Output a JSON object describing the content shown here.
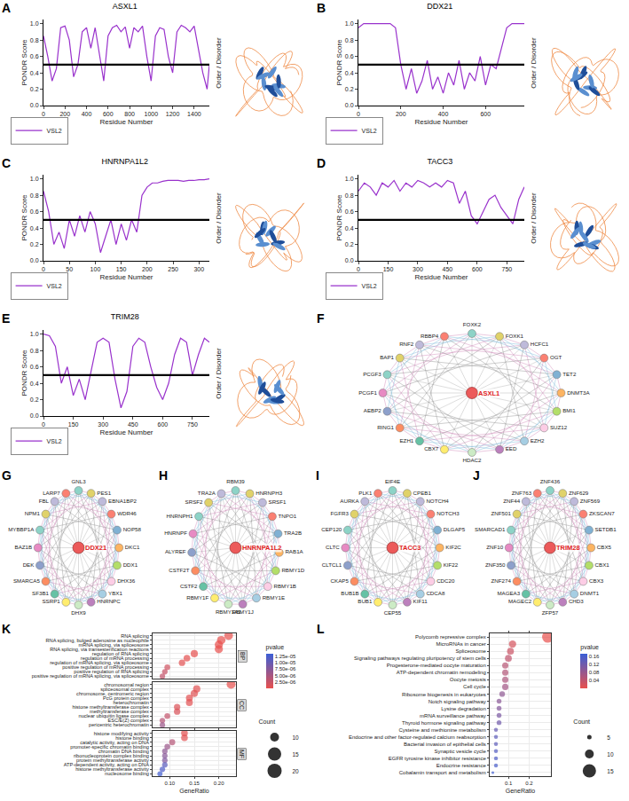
{
  "chart_data": [
    {
      "panel": "A",
      "type": "line",
      "title": "ASXL1",
      "x_label": "Residue Number",
      "y_label": "PONDR Score",
      "y2_label": "Order / Disorder",
      "series": [
        {
          "name": "VSL2",
          "color": "#9932cc",
          "x": [
            0,
            40,
            80,
            120,
            160,
            200,
            240,
            280,
            320,
            360,
            400,
            440,
            480,
            520,
            560,
            600,
            640,
            680,
            720,
            760,
            800,
            840,
            880,
            920,
            960,
            1000,
            1040,
            1080,
            1120,
            1160,
            1200,
            1240,
            1280,
            1320,
            1360,
            1400,
            1440,
            1480,
            1520,
            1541
          ],
          "values": [
            0.85,
            0.6,
            0.3,
            0.45,
            0.95,
            0.97,
            0.8,
            0.35,
            0.5,
            0.9,
            0.95,
            0.7,
            0.95,
            0.6,
            0.3,
            0.85,
            0.95,
            0.98,
            0.9,
            0.96,
            0.7,
            0.95,
            0.9,
            0.97,
            0.6,
            0.3,
            0.85,
            0.95,
            0.93,
            0.6,
            0.4,
            0.9,
            0.98,
            0.95,
            0.9,
            0.97,
            0.7,
            0.4,
            0.2,
            0.5
          ]
        }
      ],
      "threshold": 0.5,
      "xlim": [
        0,
        1541
      ],
      "xticks": [
        0,
        200,
        400,
        600,
        800,
        1000,
        1200,
        1400
      ],
      "ylim": [
        0,
        1.05
      ],
      "yticks": [
        {
          "value": 0,
          "label": "0.0"
        },
        0.2,
        0.4,
        0.6,
        0.8,
        {
          "value": 1,
          "label": "1.0"
        }
      ],
      "grid": false,
      "legend": "bottom left"
    },
    {
      "panel": "B",
      "type": "line",
      "title": "DDX21",
      "x_label": "Residue Number",
      "y_label": "PONDR Score",
      "y2_label": "Order / Disorder",
      "series": [
        {
          "name": "VSL2",
          "color": "#9932cc",
          "x": [
            0,
            25,
            50,
            75,
            100,
            125,
            150,
            175,
            200,
            225,
            250,
            275,
            300,
            325,
            350,
            375,
            400,
            425,
            450,
            475,
            500,
            525,
            550,
            575,
            600,
            625,
            650,
            675,
            700,
            725,
            750,
            783
          ],
          "values": [
            0.95,
            1.0,
            1.0,
            1.0,
            1.0,
            1.0,
            1.0,
            0.95,
            0.5,
            0.2,
            0.45,
            0.15,
            0.3,
            0.55,
            0.2,
            0.35,
            0.15,
            0.4,
            0.25,
            0.55,
            0.2,
            0.4,
            0.3,
            0.6,
            0.25,
            0.5,
            0.45,
            0.7,
            0.95,
            1.0,
            1.0,
            1.0
          ]
        }
      ],
      "threshold": 0.5,
      "xlim": [
        0,
        783
      ],
      "xticks": [
        0,
        200,
        400,
        600
      ],
      "ylim": [
        0,
        1.05
      ],
      "yticks": [
        {
          "value": 0,
          "label": "0.0"
        },
        0.2,
        0.4,
        0.6,
        0.8,
        {
          "value": 1,
          "label": "1.0"
        }
      ],
      "grid": false,
      "legend": "bottom left"
    },
    {
      "panel": "C",
      "type": "line",
      "title": "HNRNPA1L2",
      "x_label": "Residue Number",
      "y_label": "PONDR Score",
      "y2_label": "Order / Disorder",
      "series": [
        {
          "name": "VSL2",
          "color": "#9932cc",
          "x": [
            0,
            10,
            20,
            30,
            40,
            50,
            60,
            70,
            80,
            90,
            100,
            110,
            120,
            130,
            140,
            150,
            160,
            170,
            180,
            190,
            200,
            210,
            220,
            230,
            240,
            250,
            260,
            270,
            280,
            290,
            300,
            310,
            320
          ],
          "values": [
            0.85,
            0.6,
            0.2,
            0.35,
            0.15,
            0.5,
            0.3,
            0.55,
            0.35,
            0.6,
            0.45,
            0.1,
            0.3,
            0.5,
            0.2,
            0.45,
            0.25,
            0.5,
            0.35,
            0.8,
            0.9,
            0.95,
            0.95,
            0.97,
            0.98,
            0.98,
            0.98,
            0.97,
            0.98,
            0.98,
            0.99,
            0.99,
            1.0
          ]
        }
      ],
      "threshold": 0.5,
      "xlim": [
        0,
        320
      ],
      "xticks": [
        0,
        50,
        100,
        150,
        200,
        250,
        300
      ],
      "ylim": [
        0,
        1.05
      ],
      "yticks": [
        {
          "value": 0,
          "label": "0.0"
        },
        0.2,
        0.4,
        0.6,
        0.8,
        {
          "value": 1,
          "label": "1.0"
        }
      ],
      "grid": false,
      "legend": "bottom left"
    },
    {
      "panel": "D",
      "type": "line",
      "title": "TACC3",
      "x_label": "Residue Number",
      "y_label": "PONDR Score",
      "y2_label": "Order / Disorder",
      "series": [
        {
          "name": "VSL2",
          "color": "#9932cc",
          "x": [
            0,
            30,
            60,
            90,
            120,
            150,
            180,
            210,
            240,
            270,
            300,
            330,
            360,
            390,
            420,
            450,
            480,
            510,
            540,
            570,
            600,
            630,
            660,
            690,
            720,
            750,
            780,
            810,
            838
          ],
          "values": [
            0.85,
            0.95,
            0.9,
            0.8,
            0.95,
            0.9,
            0.98,
            0.85,
            0.95,
            0.9,
            0.98,
            0.95,
            0.9,
            0.95,
            0.9,
            0.98,
            0.95,
            0.7,
            0.85,
            0.55,
            0.45,
            0.6,
            0.75,
            0.8,
            0.65,
            0.55,
            0.45,
            0.75,
            0.9
          ]
        }
      ],
      "threshold": 0.5,
      "xlim": [
        0,
        838
      ],
      "xticks": [
        0,
        150,
        300,
        450,
        600,
        750
      ],
      "ylim": [
        0,
        1.05
      ],
      "yticks": [
        {
          "value": 0,
          "label": "0.0"
        },
        0.2,
        0.4,
        0.6,
        0.8,
        {
          "value": 1,
          "label": "1.0"
        }
      ],
      "grid": false,
      "legend": "bottom left"
    },
    {
      "panel": "E",
      "type": "line",
      "title": "TRIM28",
      "x_label": "Residue Number",
      "y_label": "PONDR Score",
      "y2_label": "Order / Disorder",
      "series": [
        {
          "name": "VSL2",
          "color": "#9932cc",
          "x": [
            0,
            30,
            60,
            90,
            120,
            150,
            180,
            210,
            240,
            270,
            300,
            330,
            360,
            390,
            420,
            450,
            480,
            510,
            540,
            570,
            600,
            630,
            660,
            690,
            720,
            750,
            780,
            810,
            835
          ],
          "values": [
            1.0,
            0.98,
            0.85,
            0.4,
            0.6,
            0.25,
            0.45,
            0.2,
            0.55,
            0.9,
            0.95,
            0.9,
            0.45,
            0.1,
            0.3,
            0.85,
            0.95,
            0.9,
            0.6,
            0.35,
            0.2,
            0.4,
            0.75,
            0.95,
            0.9,
            0.5,
            0.75,
            0.95,
            0.9
          ]
        }
      ],
      "threshold": 0.5,
      "xlim": [
        0,
        835
      ],
      "xticks": [
        0,
        150,
        300,
        450,
        600,
        750
      ],
      "ylim": [
        0,
        1.05
      ],
      "yticks": [
        {
          "value": 0,
          "label": "0.0"
        },
        0.2,
        0.4,
        0.6,
        0.8,
        {
          "value": 1,
          "label": "1.0"
        }
      ],
      "grid": false,
      "legend": "bottom left"
    },
    {
      "panel": "F",
      "type": "network",
      "hub": "ASXL1",
      "nodes": [
        "FOXK2",
        "FOXK1",
        "HCFC1",
        "OGT",
        "TET2",
        "DNMT3A",
        "BMI1",
        "SUZ12",
        "EZH2",
        "EED",
        "HDAC2",
        "CBX7",
        "EZH1",
        "RING1",
        "AEBP2",
        "PCGF1",
        "PCGF3",
        "BAP1",
        "RNF2",
        "RBBP4"
      ]
    },
    {
      "panel": "G",
      "type": "network",
      "hub": "DDX21",
      "nodes": [
        "GNL3",
        "PES1",
        "EBNA1BP2",
        "WDR46",
        "NOP58",
        "DKC1",
        "DDX1",
        "DHX36",
        "YBX1",
        "HNRNPC",
        "DHX9",
        "SSRP1",
        "SF3B1",
        "SMARCA5",
        "DEK",
        "BAZ1B",
        "MYBBP1A",
        "NPM1",
        "FBL",
        "LARP7"
      ]
    },
    {
      "panel": "H",
      "type": "network",
      "hub": "HNRNPA1L2",
      "nodes": [
        "RBM39",
        "HNRNPH3",
        "SRSF1",
        "TNPO1",
        "TRA2B",
        "RAB1A",
        "RBMY1D",
        "RBMY1B",
        "RBMY1E",
        "RBMY1J",
        "RBMY1A1",
        "RBMY1F",
        "CSTF2",
        "CSTF2T",
        "ALYREF",
        "HNRNPF",
        "HNRNPH1",
        "SRSF2",
        "TRA2A"
      ]
    },
    {
      "panel": "I",
      "type": "network",
      "hub": "TACC3",
      "nodes": [
        "EIF4E",
        "CPEB1",
        "NOTCH4",
        "NOTCH3",
        "DLGAP5",
        "KIF2C",
        "KIF22",
        "CDC20",
        "CDCA8",
        "KIF11",
        "CEP55",
        "BUB1",
        "BUB1B",
        "CKAP5",
        "CLTCL1",
        "CLTC",
        "CEP120",
        "FGFR3",
        "AURKA",
        "PLK1"
      ]
    },
    {
      "panel": "J",
      "type": "network",
      "hub": "TRIM28",
      "nodes": [
        "ZNF436",
        "ZNF629",
        "ZNF569",
        "ZKSCAN7",
        "SETDB1",
        "CBX5",
        "CBX1",
        "CBX3",
        "DNMT1",
        "CHD3",
        "ZFP57",
        "MAGEC2",
        "MAGEA3",
        "ZNF274",
        "ZNF350",
        "ZNF10",
        "SMARCAD1",
        "ZNF501",
        "ZNF44",
        "ZNF763"
      ]
    },
    {
      "panel": "K",
      "type": "dot",
      "x_label": "GeneRatio",
      "facets": [
        {
          "name": "BP",
          "terms": [
            "RNA splicing",
            "RNA splicing, bulged adenosine as nucleophile",
            "mRNA splicing, via spliceosome",
            "RNA splicing, via transesterification reactions",
            "regulation of RNA splicing",
            "regulation of mRNA processing",
            "regulation of mRNA splicing, via spliceosome",
            "positive regulation of mRNA processing",
            "positive regulation of RNA splicing",
            "positive regulation of mRNA splicing, via spliceosome"
          ],
          "values": [
            0.22,
            0.205,
            0.2,
            0.2,
            0.15,
            0.135,
            0.125,
            0.095,
            0.09,
            0.085
          ],
          "counts": [
            20,
            19,
            18,
            18,
            14,
            12,
            11,
            9,
            8,
            8
          ],
          "pvalues": [
            2e-09,
            5e-09,
            5e-09,
            5e-09,
            1e-07,
            3e-07,
            4e-07,
            2e-06,
            2.5e-06,
            3e-06
          ]
        },
        {
          "name": "CC",
          "terms": [
            "chromosomal region",
            "spliceosomal complex",
            "chromosome, centromeric region",
            "PcG protein complex",
            "heterochromatin",
            "histone methyltransferase complex",
            "methyltransferase complex",
            "nuclear ubiquitin ligase complex",
            "ESC/E(Z) complex",
            "pericentric heterochromatin"
          ],
          "values": [
            0.225,
            0.155,
            0.15,
            0.14,
            0.14,
            0.115,
            0.115,
            0.095,
            0.085,
            0.085
          ],
          "counts": [
            21,
            14,
            14,
            13,
            13,
            11,
            11,
            9,
            8,
            8
          ],
          "pvalues": [
            1e-08,
            5e-07,
            6e-07,
            4e-07,
            5e-07,
            1e-06,
            1.2e-06,
            3e-06,
            4e-06,
            6e-06
          ]
        },
        {
          "name": "MF",
          "terms": [
            "histone modifying activity",
            "histone binding",
            "catalytic activity, acting on DNA",
            "promoter-specific chromatin binding",
            "chromatin DNA binding",
            "ribonucleoprotein complex binding",
            "protein methyltransferase activity",
            "ATP-dependent activity, acting on DNA",
            "histone methyltransferase activity",
            "nucleosome binding"
          ],
          "values": [
            0.13,
            0.13,
            0.105,
            0.095,
            0.09,
            0.09,
            0.09,
            0.09,
            0.085,
            0.08
          ],
          "counts": [
            12,
            12,
            10,
            9,
            8,
            8,
            8,
            8,
            8,
            7
          ],
          "pvalues": [
            3e-07,
            5e-07,
            4e-06,
            6e-06,
            7e-06,
            7.5e-06,
            8e-06,
            1.1e-05,
            1.2e-05,
            1.3e-05
          ]
        }
      ],
      "xlim": [
        0.065,
        0.235
      ],
      "xticks": [
        {
          "value": 0.1,
          "label": "0.10"
        },
        0.15,
        {
          "value": 0.2,
          "label": "0.20"
        }
      ],
      "color_label": "pvalue",
      "color_range": [
        0,
        1.35e-05
      ],
      "color_ticks": [
        {
          "value": 2.5e-06,
          "label": "2.50e-06"
        },
        {
          "value": 5e-06,
          "label": "5.00e-06"
        },
        {
          "value": 7.5e-06,
          "label": "7.50e-06"
        },
        {
          "value": 1e-05,
          "label": "1.00e-05"
        },
        {
          "value": 1.25e-05,
          "label": "1.25e-05"
        }
      ],
      "size_label": "Count",
      "size_legend": [
        10,
        15,
        20
      ],
      "grid": true,
      "legend": "right"
    },
    {
      "panel": "L",
      "type": "dot",
      "x_label": "GeneRatio",
      "terms": [
        "Polycomb repressive complex",
        "MicroRNAs in cancer",
        "Spliceosome",
        "Signaling pathways regulating pluripotency of stem cells",
        "Progesterone-mediated oocyte maturation",
        "ATP-dependent chromatin remodeling",
        "Oocyte meiosis",
        "Cell cycle",
        "Ribosome biogenesis in eukaryotes",
        "Notch signaling pathway",
        "Lysine degradation",
        "mRNA surveillance pathway",
        "Thyroid hormone signaling pathway",
        "Cysteine and methionine metabolism",
        "Endocrine and other factor-regulated calcium reabsorption",
        "Bacterial invasion of epithelial cells",
        "Synaptic vesicle cycle",
        "EGFR tyrosine kinase inhibitor resistance",
        "Endocrine resistance",
        "Cobalamin transport and metabolism"
      ],
      "values": [
        0.29,
        0.12,
        0.11,
        0.1,
        0.085,
        0.085,
        0.085,
        0.085,
        0.07,
        0.055,
        0.055,
        0.055,
        0.055,
        0.04,
        0.04,
        0.04,
        0.04,
        0.04,
        0.04,
        0.025
      ],
      "counts": [
        17,
        7,
        6,
        6,
        5,
        5,
        5,
        5,
        4,
        3,
        3,
        3,
        3,
        2,
        2,
        2,
        2,
        2,
        2,
        1
      ],
      "pvalues": [
        0.0002,
        0.02,
        0.03,
        0.04,
        0.05,
        0.055,
        0.06,
        0.07,
        0.09,
        0.095,
        0.1,
        0.11,
        0.12,
        0.13,
        0.14,
        0.14,
        0.15,
        0.155,
        0.16,
        0.17
      ],
      "xlim": [
        0.01,
        0.305
      ],
      "xticks": [
        0.1,
        0.2
      ],
      "color_label": "pvalue",
      "color_range": [
        0,
        0.175
      ],
      "color_ticks": [
        0.04,
        0.08,
        0.12,
        0.16
      ],
      "size_label": "Count",
      "size_legend": [
        5,
        10,
        15
      ],
      "grid": true,
      "legend": "right"
    }
  ]
}
